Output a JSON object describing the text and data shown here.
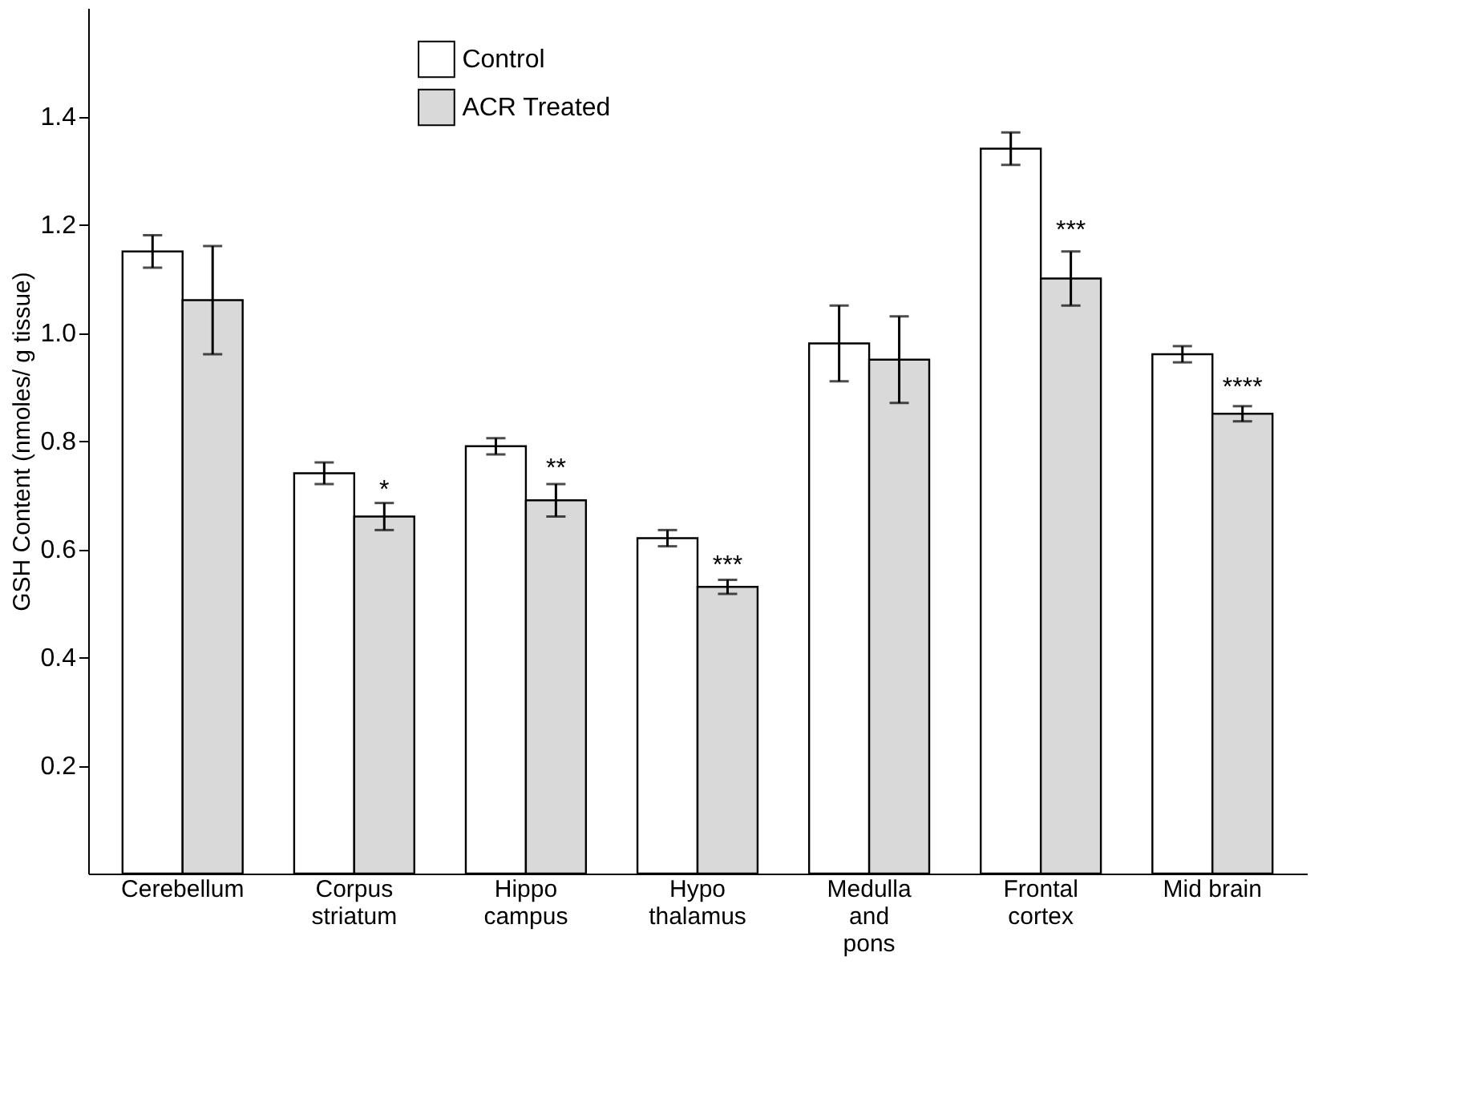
{
  "chart_data": {
    "type": "bar",
    "categories": [
      "Cerebellum",
      "Corpus\nstriatum",
      "Hippo\ncampus",
      "Hypo\nthalamus",
      "Medulla\nand\npons",
      "Frontal\ncortex",
      "Mid brain"
    ],
    "series": [
      {
        "name": "Control",
        "color": "#ffffff",
        "values": [
          1.15,
          0.74,
          0.79,
          0.62,
          0.98,
          1.34,
          0.96
        ],
        "errors": [
          0.03,
          0.02,
          0.015,
          0.015,
          0.07,
          0.03,
          0.015
        ]
      },
      {
        "name": "ACR  Treated",
        "color": "#d9d9d9",
        "values": [
          1.06,
          0.66,
          0.69,
          0.53,
          0.95,
          1.1,
          0.85
        ],
        "errors": [
          0.1,
          0.025,
          0.03,
          0.013,
          0.08,
          0.05,
          0.014
        ]
      }
    ],
    "ylabel": "GSH  Content (nmoles/ g tissue)",
    "ylim": [
      0,
      1.6
    ],
    "yticks": [
      0.2,
      0.4,
      0.6,
      0.8,
      {
        "value": 1,
        "label": "1.0"
      },
      1.2,
      1.4
    ],
    "annotations": [
      {
        "text": "*",
        "x": "Corpus\nstriatum",
        "y": 0.71
      },
      {
        "text": "**",
        "x": "Hippo\ncampus",
        "y": 0.75
      },
      {
        "text": "***",
        "x": "Hypo\nthalamus",
        "y": 0.57
      },
      {
        "text": "***",
        "x": "Frontal\ncortex",
        "y": 1.19
      },
      {
        "text": "****",
        "x": "Mid brain",
        "y": 0.9
      }
    ],
    "grid": false,
    "legend": "top"
  }
}
